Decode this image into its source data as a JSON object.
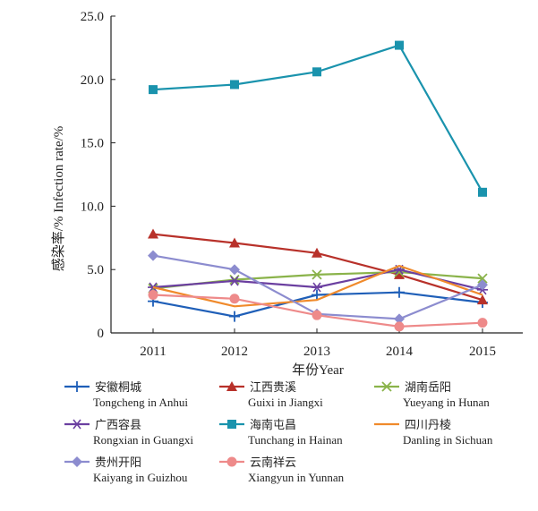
{
  "chart_data": {
    "type": "line",
    "xlabel": "年份Year",
    "ylabel": "感染率/% Infection rate/%",
    "x": [
      "2011",
      "2012",
      "2013",
      "2014",
      "2015"
    ],
    "yticks": [
      "0",
      "5.0",
      "10.0",
      "15.0",
      "20.0",
      "25.0"
    ],
    "ylim": [
      0,
      25
    ],
    "grid": false,
    "legend_position": "bottom",
    "series": [
      {
        "name_cn": "安徽桐城",
        "name_en": "Tongcheng in Anhui",
        "color": "#1f5fb8",
        "marker": "plus",
        "values": [
          2.5,
          1.3,
          3.0,
          3.2,
          2.4
        ]
      },
      {
        "name_cn": "江西贵溪",
        "name_en": "Guixi in Jiangxi",
        "color": "#b8312a",
        "marker": "triangle",
        "values": [
          7.8,
          7.1,
          6.3,
          4.6,
          2.6
        ]
      },
      {
        "name_cn": "湖南岳阳",
        "name_en": "Yueyang in Hunan",
        "color": "#8ab34a",
        "marker": "x",
        "values": [
          3.5,
          4.2,
          4.6,
          4.8,
          4.3
        ]
      },
      {
        "name_cn": "广西容县",
        "name_en": "Rongxian in Guangxi",
        "color": "#6b3fa0",
        "marker": "asterisk",
        "values": [
          3.6,
          4.1,
          3.6,
          5.0,
          3.4
        ]
      },
      {
        "name_cn": "海南屯昌",
        "name_en": "Tunchang in Hainan",
        "color": "#1a93ad",
        "marker": "square",
        "values": [
          19.2,
          19.6,
          20.6,
          22.7,
          11.1
        ]
      },
      {
        "name_cn": "四川丹棱",
        "name_en": "Danling in Sichuan",
        "color": "#f08a2b",
        "marker": "none",
        "values": [
          3.6,
          2.1,
          2.6,
          5.3,
          3.0
        ]
      },
      {
        "name_cn": "贵州开阳",
        "name_en": "Kaiyang in Guizhou",
        "color": "#8c8ccf",
        "marker": "diamond",
        "values": [
          6.1,
          5.0,
          1.5,
          1.1,
          3.8
        ]
      },
      {
        "name_cn": "云南祥云",
        "name_en": "Xiangyun in Yunnan",
        "color": "#ee8a8a",
        "marker": "circle",
        "values": [
          3.0,
          2.7,
          1.4,
          0.5,
          0.8
        ]
      }
    ]
  }
}
